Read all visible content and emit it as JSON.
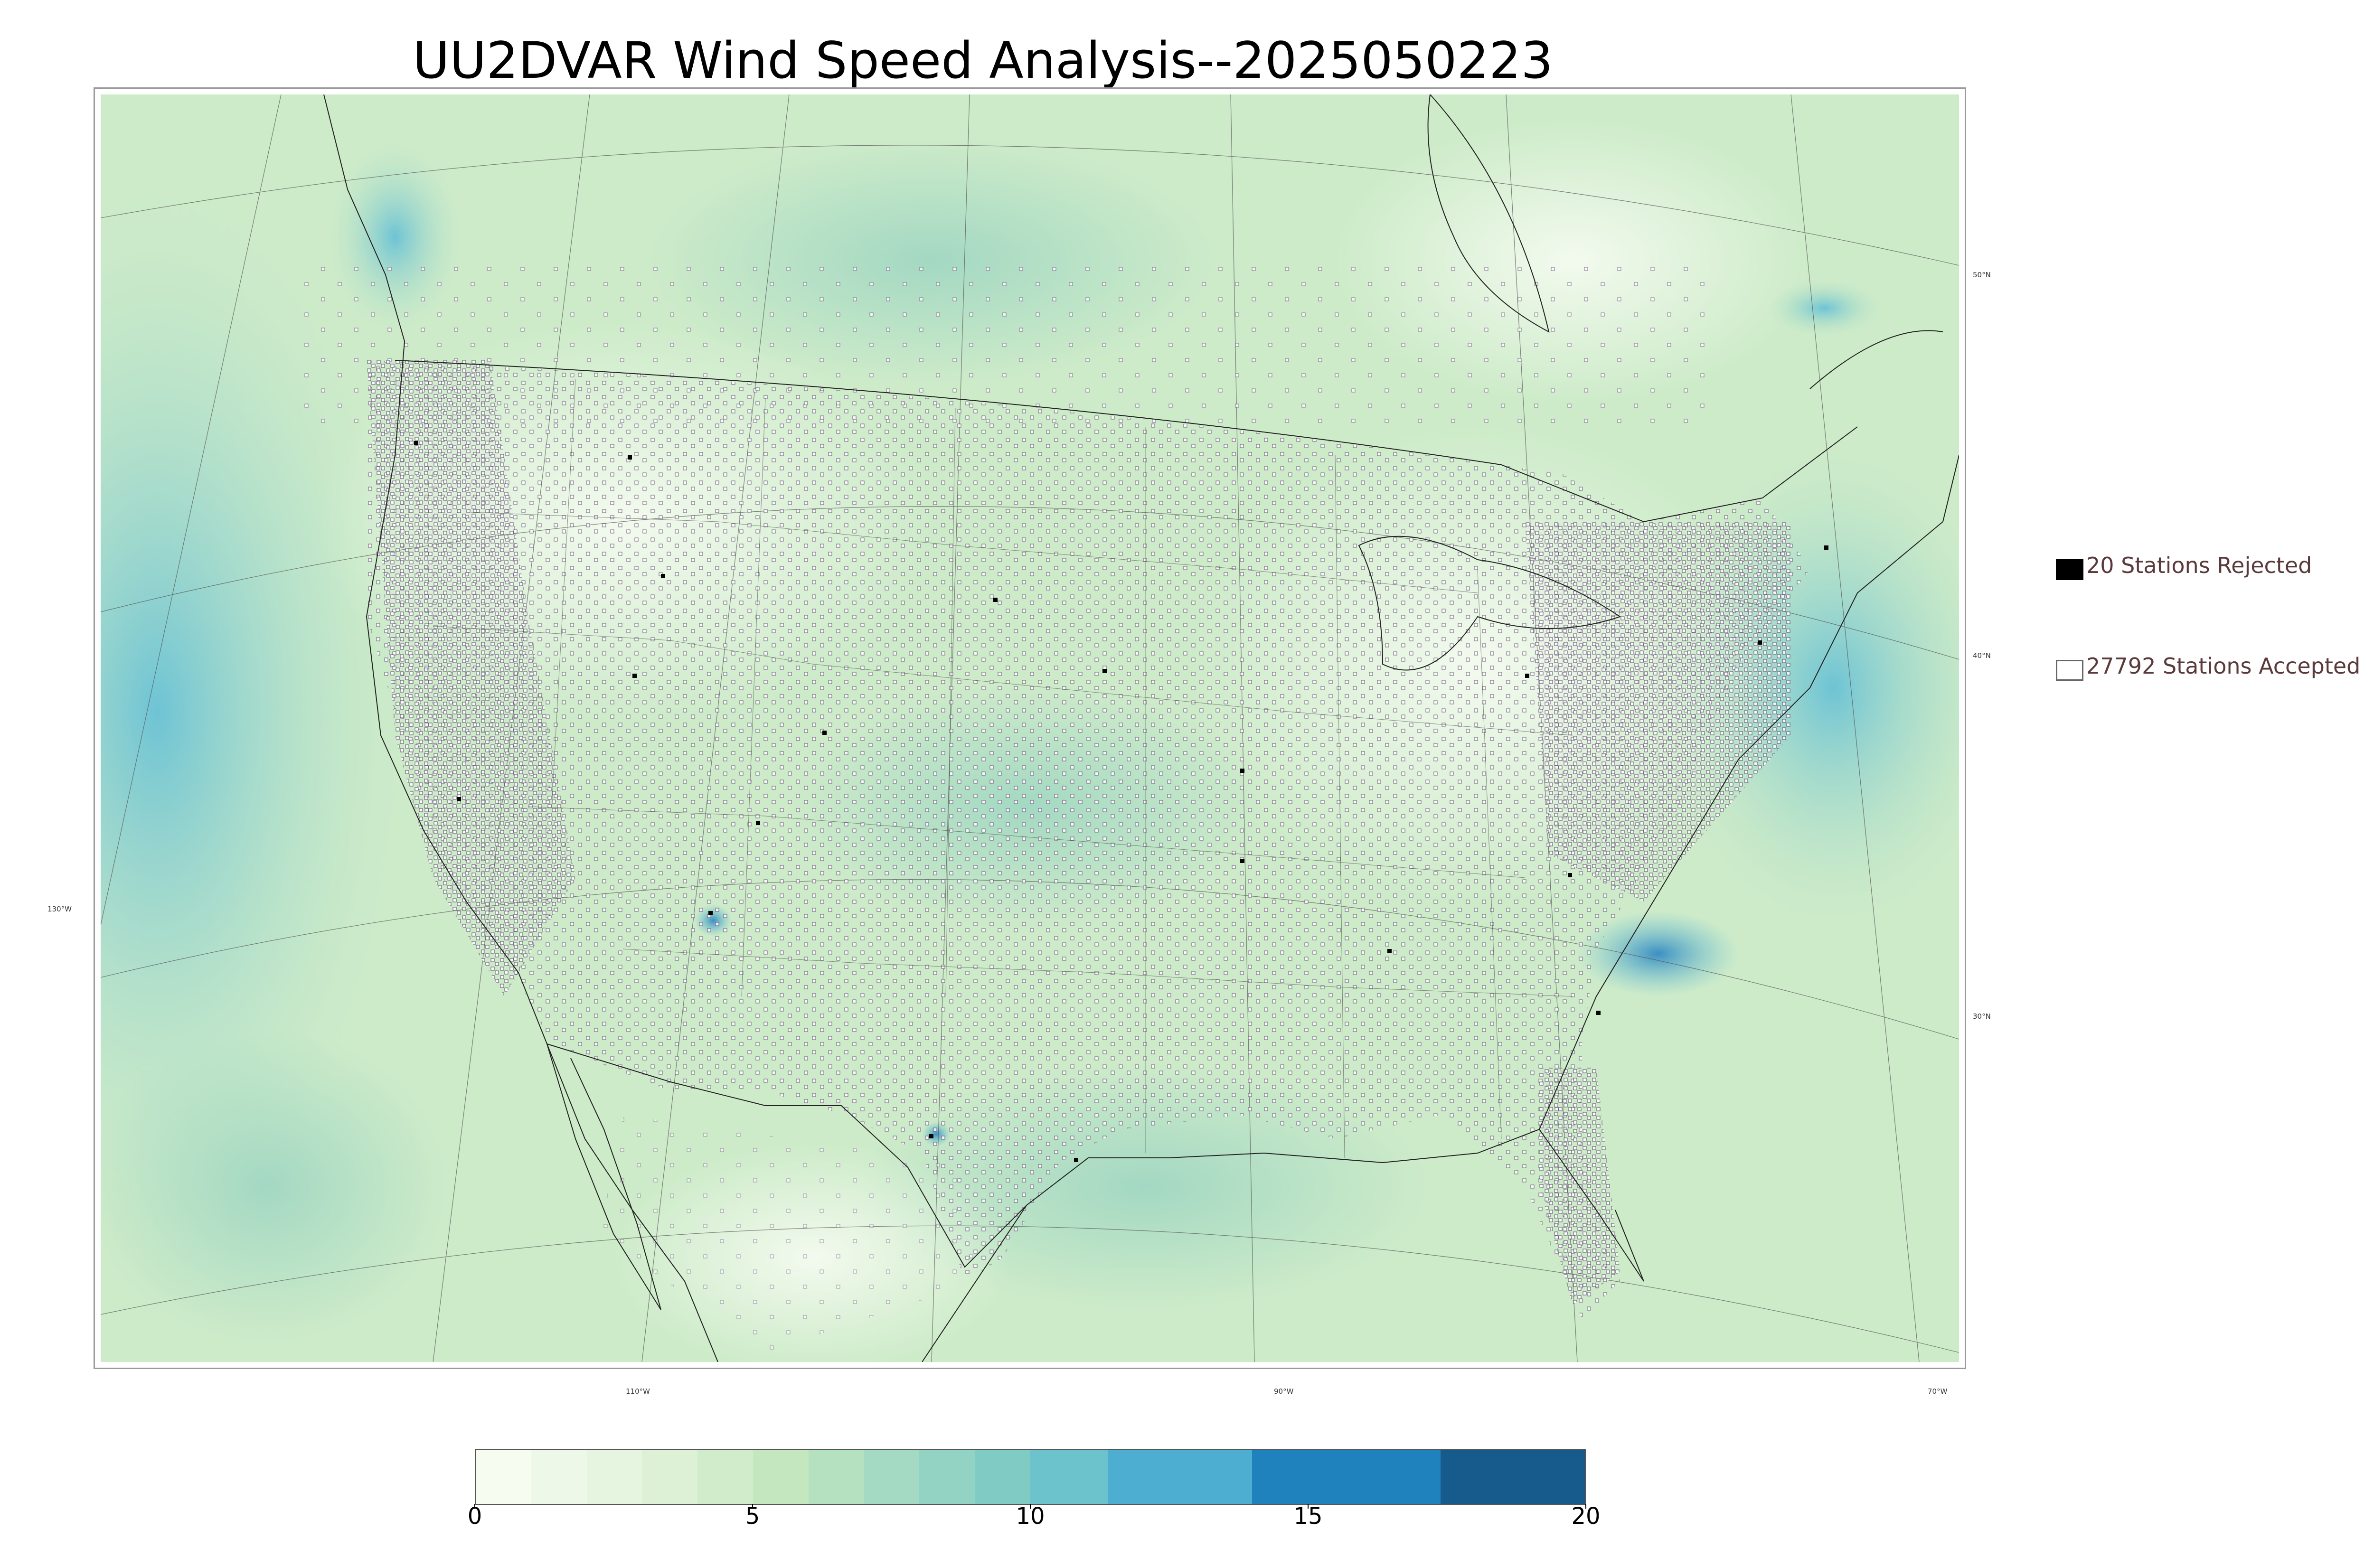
{
  "title": "UU2DVAR Wind Speed Analysis--2025050223",
  "map": {
    "lat_labels": [
      "50°N",
      "40°N",
      "30°N"
    ],
    "lon_labels": [
      "130°W",
      "110°W",
      "90°W",
      "70°W"
    ],
    "colors": {
      "land_base": "#d9f0d3",
      "light": "#eef8e8",
      "medium": "#b5e1c5",
      "strong": "#63bfd6",
      "max": "#2b85c2",
      "boundary": "#222222",
      "station_outline": "#6a5a7a"
    }
  },
  "legend": {
    "rejected": {
      "label": "20 Stations Rejected",
      "color": "#000000"
    },
    "accepted": {
      "label": "27792 Stations Accepted",
      "color": "#ffffff"
    }
  },
  "colorbar": {
    "min": 0,
    "max": 20,
    "ticks": [
      "0",
      "5",
      "10",
      "15",
      "20"
    ],
    "segments": [
      {
        "from": 0,
        "to": 1,
        "color": "#f7fcf0"
      },
      {
        "from": 1,
        "to": 2,
        "color": "#eef8e8"
      },
      {
        "from": 2,
        "to": 3,
        "color": "#e6f5df"
      },
      {
        "from": 3,
        "to": 4,
        "color": "#dcf1d5"
      },
      {
        "from": 4,
        "to": 5,
        "color": "#d1ecca"
      },
      {
        "from": 5,
        "to": 6,
        "color": "#c4e7c0"
      },
      {
        "from": 6,
        "to": 7,
        "color": "#b5e1c1"
      },
      {
        "from": 7,
        "to": 8,
        "color": "#a4dac3"
      },
      {
        "from": 8,
        "to": 9,
        "color": "#92d3c4"
      },
      {
        "from": 9,
        "to": 10,
        "color": "#80ccc4"
      },
      {
        "from": 10,
        "to": 11.4,
        "color": "#6cc3cc"
      },
      {
        "from": 11.4,
        "to": 14,
        "color": "#4eaed1"
      },
      {
        "from": 14,
        "to": 17.4,
        "color": "#2082bd"
      },
      {
        "from": 17.4,
        "to": 20,
        "color": "#165b8c"
      }
    ]
  }
}
